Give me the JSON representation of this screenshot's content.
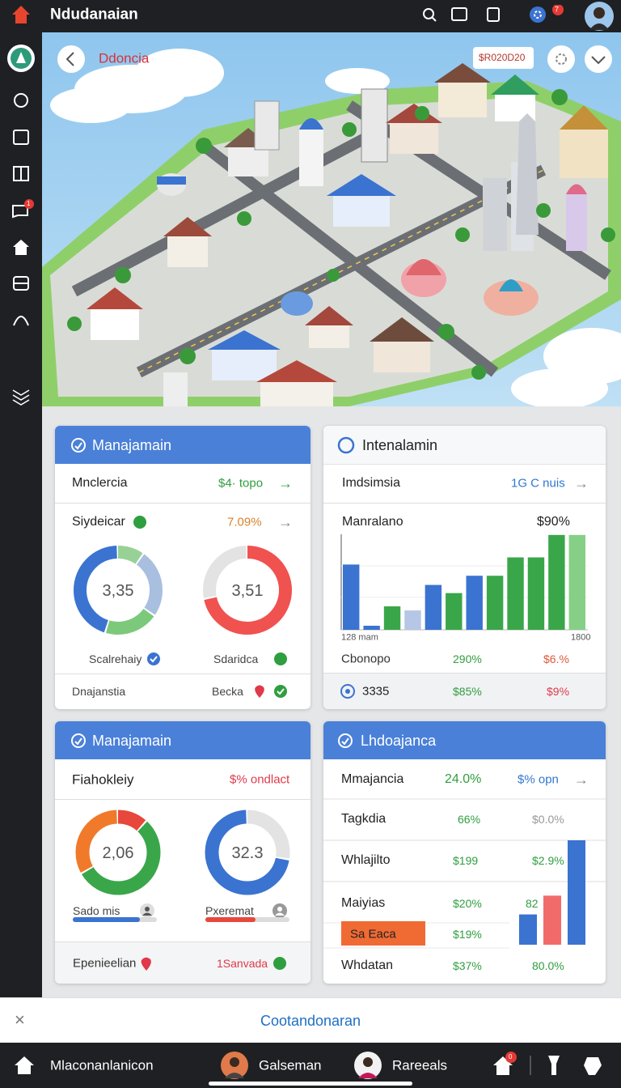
{
  "header": {
    "title": "Ndudanaian",
    "badge": "7"
  },
  "sidebar": {
    "badge": "1"
  },
  "map": {
    "title": "Ddoncia",
    "code": "$R020D20"
  },
  "cards": [
    {
      "title": "Manajamain",
      "row1": {
        "label": "Mnclercia",
        "value": "$4· topo"
      },
      "row2": {
        "label": "Siydeicar",
        "value": "7.09%"
      },
      "donuts": [
        {
          "center": "3,35",
          "label": "Scalrehaiy",
          "segments": [
            {
              "value": 10,
              "color": "#98d196"
            },
            {
              "value": 25,
              "color": "#a9bfe0"
            },
            {
              "value": 20,
              "color": "#7cc97c"
            },
            {
              "value": 45,
              "color": "#3b73d1"
            }
          ]
        },
        {
          "center": "3,51",
          "label": "Sdaridca",
          "segments": [
            {
              "value": 72,
              "color": "#f0524f"
            },
            {
              "value": 28,
              "color": "#e3e3e3"
            }
          ]
        }
      ],
      "footer": {
        "left": "Dnajanstia",
        "right": "Becka"
      }
    },
    {
      "title": "Intenalamin",
      "row1": {
        "label": "Imdsimsia",
        "value": "1G C nuis"
      },
      "chart": {
        "title": "Manralano",
        "value": "$90%",
        "x_labels": [
          "128 mam",
          "1800"
        ],
        "bars": [
          {
            "value": 64,
            "color": "#3b73d1"
          },
          {
            "value": 4,
            "color": "#3b73d1"
          },
          {
            "value": 23,
            "color": "#3aa64a"
          },
          {
            "value": 19,
            "color": "#b6c6e6"
          },
          {
            "value": 44,
            "color": "#3b73d1"
          },
          {
            "value": 36,
            "color": "#3aa64a"
          },
          {
            "value": 53,
            "color": "#3b73d1"
          },
          {
            "value": 53,
            "color": "#3aa64a"
          },
          {
            "value": 71,
            "color": "#3aa64a"
          },
          {
            "value": 71,
            "color": "#3aa64a"
          },
          {
            "value": 93,
            "color": "#3aa64a"
          },
          {
            "value": 93,
            "color": "#86cf86"
          }
        ]
      },
      "rows": [
        [
          "Cbonopo",
          "290%",
          "$6.%"
        ],
        [
          "3335",
          "$85%",
          "$9%"
        ]
      ]
    },
    {
      "title": "Manajamain",
      "row1": {
        "label": "Fiahokleiy",
        "value": "$% ondlact"
      },
      "donuts": [
        {
          "center": "2,06",
          "label": "Sado mis",
          "segments": [
            {
              "value": 12,
              "color": "#e8473c"
            },
            {
              "value": 55,
              "color": "#3aa64a"
            },
            {
              "value": 33,
              "color": "#f07a2a"
            }
          ],
          "progress": {
            "value": 80,
            "color": "#3b73d1"
          }
        },
        {
          "center": "32.3",
          "label": "Pxeremat",
          "segments": [
            {
              "value": 28,
              "color": "#e3e3e3"
            },
            {
              "value": 72,
              "color": "#3b73d1"
            }
          ],
          "progress": {
            "value": 60,
            "color": "#e8473c"
          }
        }
      ],
      "footer": {
        "left": "Epenieelian",
        "right": "1Sanvada"
      }
    },
    {
      "title": "Lhdoajanca",
      "rows": [
        [
          "Mmajancia",
          "24.0%",
          "$% opn"
        ],
        [
          "Tagkdia",
          "66%",
          "$0.0%"
        ],
        [
          "Whlajilto",
          "$199",
          "$2.9%"
        ],
        [
          "Maiyias",
          "$20%",
          "82"
        ],
        [
          "Sa Eaca",
          "$19%"
        ],
        [
          "Whdatan",
          "$37%",
          "80.0%"
        ]
      ],
      "bars": [
        {
          "value": 29,
          "color": "#3b73d1"
        },
        {
          "value": 47,
          "color": "#f26b6b"
        },
        {
          "value": 100,
          "color": "#3b73d1"
        }
      ]
    }
  ],
  "bottom_bar": {
    "label": "Cootandonaran"
  },
  "nav": {
    "items": [
      "Mlaconanlanicon",
      "Galseman",
      "Rareeals"
    ],
    "badge": "0"
  }
}
